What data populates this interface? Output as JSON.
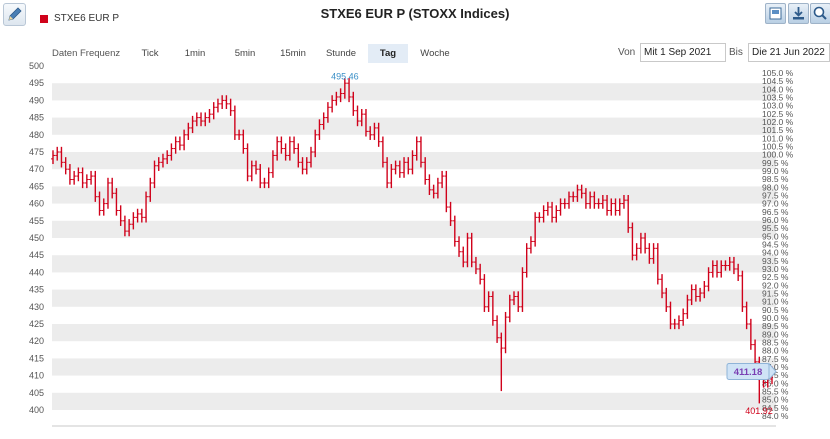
{
  "toolbar": {
    "edit_icon": "pencil-icon",
    "right_icons": [
      "image-icon",
      "download-icon",
      "zoom-icon"
    ]
  },
  "legend": {
    "label": "STXE6 EUR P",
    "color": "#d0021b"
  },
  "title": "STXE6 EUR P (STOXX Indices)",
  "frequency": {
    "label": "Daten Frequenz",
    "tabs": [
      "Tick",
      "1min",
      "5min",
      "15min",
      "Stunde",
      "Tag",
      "Woche"
    ],
    "active": "Tag"
  },
  "range": {
    "from_label": "Von",
    "from_value": "Mit 1 Sep 2021",
    "to_label": "Bis",
    "to_value": "Die 21 Jun 2022"
  },
  "annotations": {
    "max_label": "495.46",
    "min_label": "401.92",
    "current_label": "411.18"
  },
  "colors": {
    "candle": "#d0021b",
    "band": "#ececec",
    "axis_text": "#555555",
    "max_label": "#3a8fc7",
    "current_box": "#cfe3f6",
    "current_text": "#7a3fb3"
  },
  "chart_data": {
    "type": "bar",
    "subtype": "ohlc",
    "title": "STXE6 EUR P (STOXX Indices)",
    "x_range": [
      "2021-09-01",
      "2022-06-21"
    ],
    "ylim": [
      400,
      500
    ],
    "y_ticks": [
      400,
      405,
      410,
      415,
      420,
      425,
      430,
      435,
      440,
      445,
      450,
      455,
      460,
      465,
      470,
      475,
      480,
      485,
      490,
      495,
      500
    ],
    "y2_range_percent": [
      84.0,
      105.0
    ],
    "y2_ticks": [
      "105.0 %",
      "104.5 %",
      "104.0 %",
      "103.5 %",
      "103.0 %",
      "102.5 %",
      "102.0 %",
      "101.5 %",
      "101.0 %",
      "100.5 %",
      "100.0 %",
      "99.5 %",
      "99.0 %",
      "98.5 %",
      "98.0 %",
      "97.5 %",
      "97.0 %",
      "96.5 %",
      "96.0 %",
      "95.5 %",
      "95.0 %",
      "94.5 %",
      "94.0 %",
      "93.5 %",
      "93.0 %",
      "92.5 %",
      "92.0 %",
      "91.5 %",
      "91.0 %",
      "90.5 %",
      "90.0 %",
      "89.5 %",
      "89.0 %",
      "88.5 %",
      "88.0 %",
      "87.5 %",
      "87.0 %",
      "86.5 %",
      "86.0 %",
      "85.5 %",
      "85.0 %",
      "84.5 %",
      "84.0 %"
    ],
    "grid": "alternating-bands",
    "series": [
      {
        "name": "STXE6 EUR P",
        "close": [
          474,
          475,
          472,
          470,
          467,
          468,
          469,
          466,
          467,
          468,
          462,
          458,
          460,
          466,
          463,
          458,
          455,
          452,
          454,
          456,
          457,
          456,
          462,
          466,
          471,
          472,
          473,
          474,
          476,
          478,
          477,
          480,
          482,
          484,
          485,
          484,
          485,
          486,
          488,
          489,
          490,
          489,
          487,
          480,
          480,
          476,
          468,
          471,
          470,
          466,
          466,
          469,
          474,
          478,
          476,
          474,
          478,
          476,
          472,
          470,
          472,
          475,
          480,
          483,
          485,
          488,
          490,
          491,
          492,
          495,
          491,
          487,
          484,
          486,
          481,
          480,
          482,
          478,
          472,
          466,
          470,
          471,
          469,
          472,
          470,
          474,
          478,
          472,
          467,
          464,
          463,
          466,
          468,
          459,
          455,
          449,
          446,
          443,
          450,
          443,
          441,
          438,
          430,
          433,
          426,
          421,
          418,
          427,
          432,
          433,
          430,
          440,
          447,
          449,
          456,
          456,
          458,
          459,
          456,
          458,
          460,
          460,
          462,
          462,
          464,
          463,
          460,
          462,
          460,
          460,
          461,
          458,
          460,
          458,
          460,
          461,
          453,
          445,
          447,
          450,
          447,
          444,
          447,
          438,
          434,
          430,
          425,
          425,
          426,
          428,
          432,
          435,
          433,
          434,
          436,
          440,
          442,
          440,
          442,
          442,
          443,
          441,
          439,
          430,
          425,
          419,
          414,
          410,
          408,
          409,
          411.18
        ]
      }
    ],
    "max": 495.46,
    "min": 401.92,
    "last": 411.18
  }
}
